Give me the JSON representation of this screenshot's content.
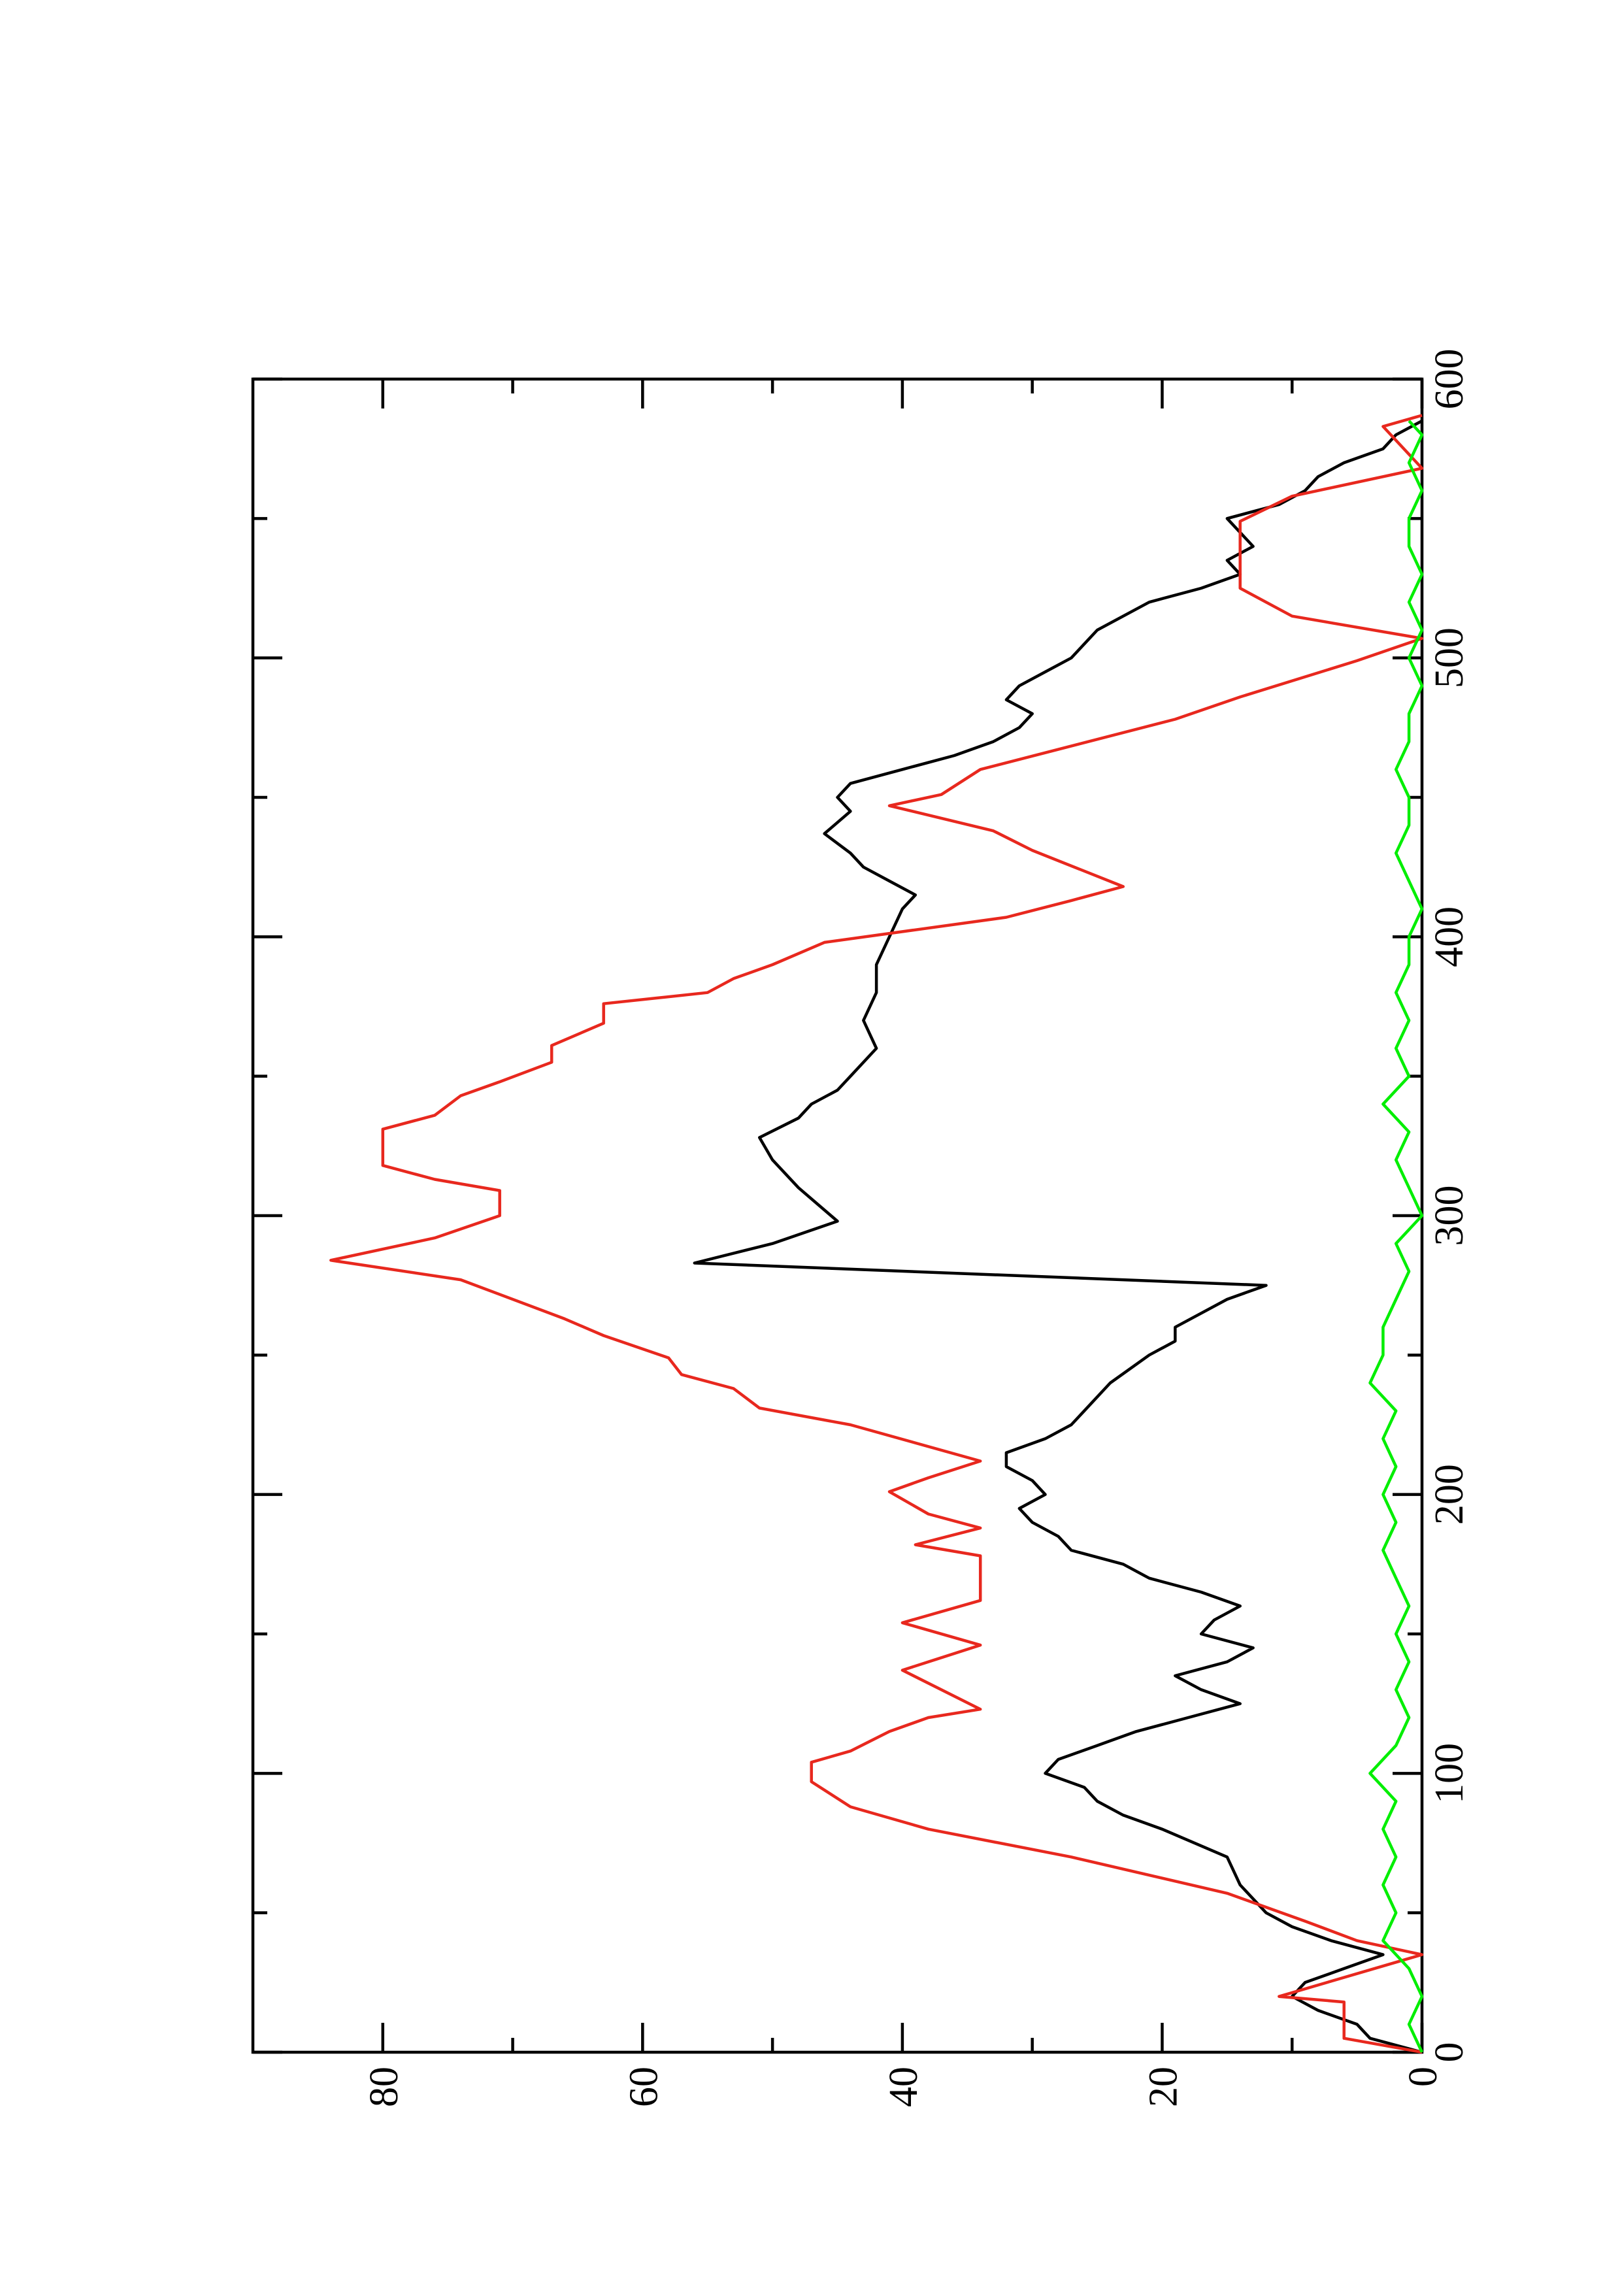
{
  "chart_data": {
    "type": "line",
    "xlim": [
      0,
      600
    ],
    "xticks": [
      0,
      100,
      200,
      300,
      400,
      500,
      600
    ],
    "xticks_minor": [
      50,
      150,
      250,
      350,
      450,
      550
    ],
    "ylim": [
      0,
      90
    ],
    "yticks": [
      0,
      20,
      40,
      60,
      80
    ],
    "yticks_minor": [
      10,
      30,
      50,
      70
    ],
    "series": [
      {
        "color": "#000000",
        "x": [
          0,
          5,
          10,
          15,
          20,
          25,
          30,
          35,
          40,
          45,
          50,
          60,
          70,
          80,
          85,
          90,
          95,
          100,
          105,
          110,
          115,
          120,
          125,
          130,
          135,
          140,
          145,
          150,
          155,
          160,
          165,
          170,
          175,
          180,
          185,
          190,
          195,
          200,
          205,
          210,
          215,
          220,
          225,
          230,
          240,
          250,
          255,
          260,
          270,
          275,
          283,
          290,
          298,
          310,
          320,
          328,
          335,
          340,
          345,
          350,
          360,
          370,
          380,
          390,
          400,
          410,
          415,
          420,
          425,
          430,
          437,
          445,
          450,
          455,
          460,
          465,
          470,
          475,
          480,
          485,
          490,
          495,
          500,
          505,
          510,
          520,
          525,
          530,
          535,
          540,
          545,
          550,
          555,
          560,
          565,
          570,
          575,
          580,
          585
        ],
        "values": [
          0,
          4,
          5,
          8,
          10,
          9,
          6,
          3,
          7,
          10,
          12,
          14,
          15,
          20,
          23,
          25,
          26,
          29,
          28,
          25,
          22,
          18,
          14,
          17,
          19,
          15,
          13,
          17,
          16,
          14,
          17,
          21,
          23,
          27,
          28,
          30,
          31,
          29,
          30,
          32,
          32,
          29,
          27,
          26,
          24,
          21,
          19,
          19,
          15,
          12,
          56,
          50,
          45,
          48,
          50,
          51,
          48,
          47,
          45,
          44,
          42,
          43,
          42,
          42,
          41,
          40,
          39,
          41,
          43,
          44,
          46,
          44,
          45,
          44,
          40,
          36,
          33,
          31,
          30,
          32,
          31,
          29,
          27,
          26,
          25,
          21,
          17,
          14,
          15,
          13,
          14,
          15,
          11,
          9,
          8,
          6,
          3,
          2,
          0
        ]
      },
      {
        "color": "#e8281e",
        "x": [
          0,
          5,
          18,
          20,
          35,
          40,
          47,
          57,
          70,
          80,
          88,
          97,
          104,
          108,
          115,
          120,
          123,
          137,
          146,
          154,
          162,
          178,
          182,
          188,
          193,
          201,
          206,
          212,
          225,
          231,
          238,
          243,
          249,
          257,
          263,
          277,
          284,
          292,
          300,
          309,
          313,
          318,
          331,
          336,
          343,
          348,
          355,
          361,
          369,
          376,
          380,
          385,
          390,
          398,
          407,
          413,
          418,
          431,
          438,
          447,
          451,
          460,
          478,
          486,
          499,
          507,
          515,
          525,
          549,
          558,
          568,
          583,
          587
        ],
        "values": [
          0,
          6,
          6,
          11,
          0,
          5,
          9,
          15,
          27,
          38,
          44,
          47,
          47,
          44,
          41,
          38,
          34,
          40,
          34,
          40,
          34,
          34,
          39,
          34,
          38,
          41,
          38,
          34,
          44,
          51,
          53,
          57,
          58,
          63,
          66,
          74,
          84,
          76,
          71,
          71,
          76,
          80,
          80,
          76,
          74,
          71,
          67,
          67,
          63,
          63,
          55,
          53,
          50,
          46,
          32,
          27,
          23,
          30,
          33,
          41,
          37,
          34,
          19,
          14,
          5,
          0,
          10,
          14,
          14,
          10,
          0,
          3,
          0
        ]
      },
      {
        "color": "#00ee00",
        "x": [
          0,
          10,
          20,
          30,
          40,
          50,
          60,
          70,
          80,
          90,
          100,
          110,
          120,
          130,
          140,
          150,
          160,
          170,
          180,
          190,
          200,
          210,
          220,
          230,
          240,
          250,
          260,
          270,
          280,
          290,
          300,
          310,
          320,
          330,
          340,
          350,
          360,
          370,
          380,
          390,
          400,
          410,
          420,
          430,
          440,
          450,
          460,
          470,
          480,
          490,
          500,
          510,
          520,
          530,
          540,
          550,
          560,
          570,
          580,
          585
        ],
        "values": [
          0,
          1,
          0,
          1,
          3,
          2,
          3,
          2,
          3,
          2,
          4,
          2,
          1,
          2,
          1,
          2,
          1,
          2,
          3,
          2,
          3,
          2,
          3,
          2,
          4,
          3,
          3,
          2,
          1,
          2,
          0,
          1,
          2,
          1,
          3,
          1,
          2,
          1,
          2,
          1,
          1,
          0,
          1,
          2,
          1,
          1,
          2,
          1,
          1,
          0,
          1,
          0,
          1,
          0,
          1,
          1,
          0,
          1,
          0,
          1
        ]
      }
    ]
  }
}
